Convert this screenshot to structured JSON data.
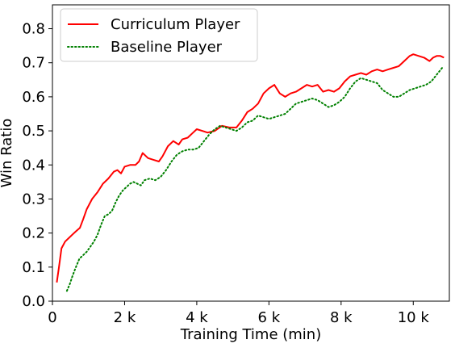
{
  "chart_data": {
    "type": "line",
    "title": "",
    "xlabel": "Training Time (min)",
    "ylabel": "Win Ratio",
    "xlim": [
      0,
      11000
    ],
    "ylim": [
      0,
      0.87
    ],
    "xticks": [
      {
        "value": 0,
        "label": "0"
      },
      {
        "value": 2000,
        "label": "2 k"
      },
      {
        "value": 4000,
        "label": "4 k"
      },
      {
        "value": 6000,
        "label": "6 k"
      },
      {
        "value": 8000,
        "label": "8 k"
      },
      {
        "value": 10000,
        "label": "10 k"
      }
    ],
    "yticks": [
      {
        "value": 0.0,
        "label": "0.0"
      },
      {
        "value": 0.1,
        "label": "0.1"
      },
      {
        "value": 0.2,
        "label": "0.2"
      },
      {
        "value": 0.3,
        "label": "0.3"
      },
      {
        "value": 0.4,
        "label": "0.4"
      },
      {
        "value": 0.5,
        "label": "0.5"
      },
      {
        "value": 0.6,
        "label": "0.6"
      },
      {
        "value": 0.7,
        "label": "0.7"
      },
      {
        "value": 0.8,
        "label": "0.8"
      }
    ],
    "grid": false,
    "legend_position": "top-left",
    "series": [
      {
        "name": "Curriculum Player",
        "color": "#ff0000",
        "style": "solid",
        "points": [
          [
            120,
            0.055
          ],
          [
            180,
            0.1
          ],
          [
            250,
            0.155
          ],
          [
            350,
            0.175
          ],
          [
            450,
            0.185
          ],
          [
            550,
            0.195
          ],
          [
            650,
            0.205
          ],
          [
            760,
            0.215
          ],
          [
            850,
            0.24
          ],
          [
            950,
            0.27
          ],
          [
            1100,
            0.3
          ],
          [
            1250,
            0.32
          ],
          [
            1400,
            0.345
          ],
          [
            1550,
            0.36
          ],
          [
            1700,
            0.38
          ],
          [
            1800,
            0.385
          ],
          [
            1900,
            0.375
          ],
          [
            2000,
            0.395
          ],
          [
            2150,
            0.4
          ],
          [
            2300,
            0.4
          ],
          [
            2400,
            0.41
          ],
          [
            2500,
            0.435
          ],
          [
            2650,
            0.42
          ],
          [
            2800,
            0.415
          ],
          [
            2950,
            0.41
          ],
          [
            3050,
            0.425
          ],
          [
            3200,
            0.455
          ],
          [
            3350,
            0.47
          ],
          [
            3500,
            0.46
          ],
          [
            3600,
            0.475
          ],
          [
            3750,
            0.48
          ],
          [
            3900,
            0.495
          ],
          [
            4000,
            0.505
          ],
          [
            4150,
            0.5
          ],
          [
            4300,
            0.495
          ],
          [
            4500,
            0.5
          ],
          [
            4700,
            0.515
          ],
          [
            4900,
            0.51
          ],
          [
            5100,
            0.51
          ],
          [
            5250,
            0.53
          ],
          [
            5400,
            0.555
          ],
          [
            5550,
            0.565
          ],
          [
            5700,
            0.58
          ],
          [
            5850,
            0.61
          ],
          [
            6000,
            0.625
          ],
          [
            6150,
            0.635
          ],
          [
            6300,
            0.61
          ],
          [
            6450,
            0.6
          ],
          [
            6600,
            0.61
          ],
          [
            6750,
            0.615
          ],
          [
            6900,
            0.625
          ],
          [
            7050,
            0.635
          ],
          [
            7200,
            0.63
          ],
          [
            7350,
            0.635
          ],
          [
            7500,
            0.615
          ],
          [
            7650,
            0.62
          ],
          [
            7800,
            0.615
          ],
          [
            7950,
            0.625
          ],
          [
            8100,
            0.645
          ],
          [
            8250,
            0.66
          ],
          [
            8400,
            0.665
          ],
          [
            8550,
            0.67
          ],
          [
            8700,
            0.665
          ],
          [
            8850,
            0.675
          ],
          [
            9000,
            0.68
          ],
          [
            9150,
            0.675
          ],
          [
            9300,
            0.68
          ],
          [
            9450,
            0.685
          ],
          [
            9600,
            0.69
          ],
          [
            9750,
            0.705
          ],
          [
            9900,
            0.72
          ],
          [
            10000,
            0.725
          ],
          [
            10150,
            0.72
          ],
          [
            10300,
            0.715
          ],
          [
            10450,
            0.705
          ],
          [
            10550,
            0.715
          ],
          [
            10650,
            0.72
          ],
          [
            10750,
            0.72
          ],
          [
            10850,
            0.715
          ]
        ]
      },
      {
        "name": "Baseline Player",
        "color": "#008000",
        "style": "dotted",
        "points": [
          [
            400,
            0.03
          ],
          [
            480,
            0.05
          ],
          [
            560,
            0.075
          ],
          [
            650,
            0.1
          ],
          [
            750,
            0.125
          ],
          [
            850,
            0.135
          ],
          [
            950,
            0.145
          ],
          [
            1050,
            0.16
          ],
          [
            1150,
            0.175
          ],
          [
            1250,
            0.195
          ],
          [
            1350,
            0.225
          ],
          [
            1450,
            0.25
          ],
          [
            1550,
            0.255
          ],
          [
            1650,
            0.265
          ],
          [
            1750,
            0.29
          ],
          [
            1850,
            0.31
          ],
          [
            1950,
            0.325
          ],
          [
            2050,
            0.335
          ],
          [
            2150,
            0.345
          ],
          [
            2250,
            0.35
          ],
          [
            2350,
            0.345
          ],
          [
            2450,
            0.34
          ],
          [
            2550,
            0.355
          ],
          [
            2700,
            0.36
          ],
          [
            2850,
            0.355
          ],
          [
            3000,
            0.365
          ],
          [
            3150,
            0.385
          ],
          [
            3300,
            0.41
          ],
          [
            3450,
            0.43
          ],
          [
            3600,
            0.44
          ],
          [
            3750,
            0.445
          ],
          [
            3900,
            0.445
          ],
          [
            4050,
            0.45
          ],
          [
            4200,
            0.47
          ],
          [
            4350,
            0.49
          ],
          [
            4500,
            0.505
          ],
          [
            4650,
            0.515
          ],
          [
            4800,
            0.51
          ],
          [
            4950,
            0.505
          ],
          [
            5100,
            0.5
          ],
          [
            5250,
            0.51
          ],
          [
            5400,
            0.525
          ],
          [
            5550,
            0.53
          ],
          [
            5700,
            0.545
          ],
          [
            5850,
            0.54
          ],
          [
            6000,
            0.535
          ],
          [
            6150,
            0.54
          ],
          [
            6300,
            0.545
          ],
          [
            6450,
            0.55
          ],
          [
            6600,
            0.565
          ],
          [
            6750,
            0.58
          ],
          [
            6900,
            0.585
          ],
          [
            7050,
            0.59
          ],
          [
            7200,
            0.595
          ],
          [
            7350,
            0.59
          ],
          [
            7500,
            0.58
          ],
          [
            7650,
            0.57
          ],
          [
            7800,
            0.575
          ],
          [
            7950,
            0.585
          ],
          [
            8100,
            0.6
          ],
          [
            8250,
            0.625
          ],
          [
            8400,
            0.645
          ],
          [
            8550,
            0.655
          ],
          [
            8700,
            0.65
          ],
          [
            8850,
            0.645
          ],
          [
            9000,
            0.64
          ],
          [
            9150,
            0.62
          ],
          [
            9300,
            0.61
          ],
          [
            9450,
            0.6
          ],
          [
            9600,
            0.6
          ],
          [
            9750,
            0.61
          ],
          [
            9900,
            0.62
          ],
          [
            10050,
            0.625
          ],
          [
            10200,
            0.63
          ],
          [
            10350,
            0.635
          ],
          [
            10500,
            0.645
          ],
          [
            10650,
            0.665
          ],
          [
            10800,
            0.685
          ]
        ]
      }
    ]
  }
}
